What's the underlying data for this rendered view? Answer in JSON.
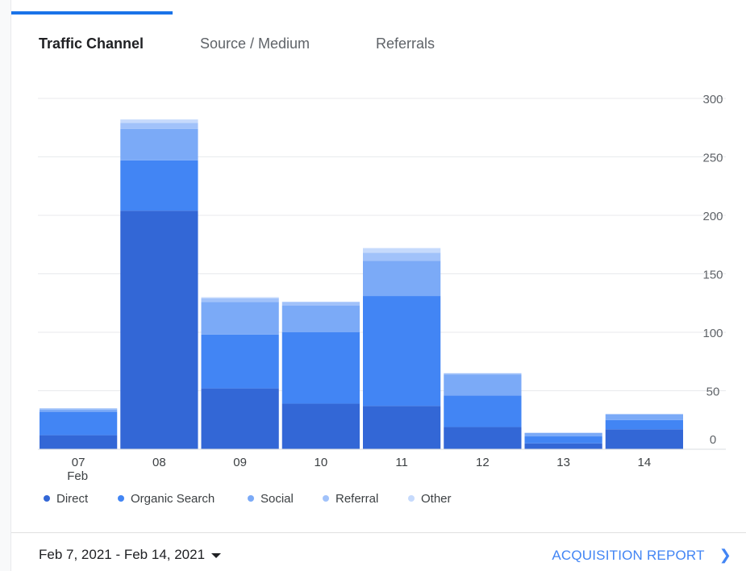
{
  "tabs": [
    {
      "label": "Traffic Channel",
      "active": true
    },
    {
      "label": "Source / Medium",
      "active": false
    },
    {
      "label": "Referrals",
      "active": false
    }
  ],
  "footer": {
    "date_range": "Feb 7, 2021 - Feb 14, 2021",
    "report_link": "ACQUISITION REPORT",
    "report_icon": "chevron-right-icon",
    "date_icon": "caret-down-icon"
  },
  "colors": {
    "accent": "#1a73e8",
    "direct": "#3367d6",
    "organic": "#4285f4",
    "social": "#7baaf7",
    "referral": "#a1c2fa",
    "other": "#c6dafc"
  },
  "chart_data": {
    "type": "bar",
    "stacked": true,
    "categories": [
      "07",
      "08",
      "09",
      "10",
      "11",
      "12",
      "13",
      "14"
    ],
    "x_sublabel": {
      "07": "Feb"
    },
    "ylim": [
      0,
      300
    ],
    "yticks": [
      0,
      50,
      100,
      150,
      200,
      250,
      300
    ],
    "grid": true,
    "y_axis_position": "right",
    "legend_position": "bottom-left",
    "series": [
      {
        "name": "Direct",
        "color": "#3367d6",
        "values": [
          12,
          204,
          52,
          39,
          37,
          19,
          5,
          17
        ]
      },
      {
        "name": "Organic Search",
        "color": "#4285f4",
        "values": [
          20,
          43,
          46,
          61,
          94,
          27,
          6,
          8
        ]
      },
      {
        "name": "Social",
        "color": "#7baaf7",
        "values": [
          2,
          27,
          28,
          23,
          30,
          18,
          3,
          5
        ]
      },
      {
        "name": "Referral",
        "color": "#a1c2fa",
        "values": [
          1,
          5,
          3,
          3,
          7,
          1,
          0,
          0
        ]
      },
      {
        "name": "Other",
        "color": "#c6dafc",
        "values": [
          0,
          3,
          1,
          0,
          4,
          0,
          0,
          0
        ]
      }
    ]
  }
}
